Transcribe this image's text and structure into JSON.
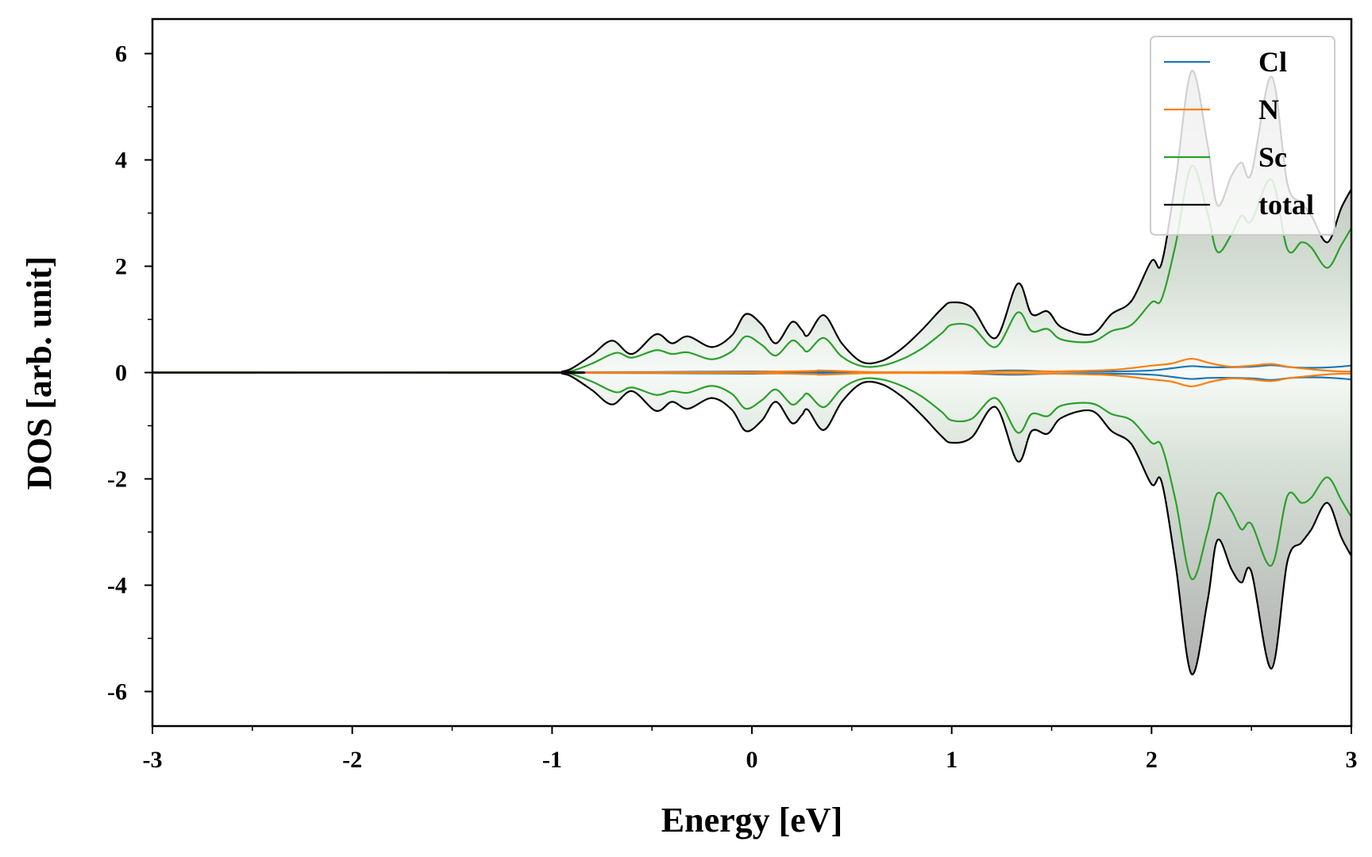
{
  "chart_data": {
    "type": "line",
    "title": "",
    "xlabel": "Energy [eV]",
    "ylabel": "DOS [arb. unit]",
    "xlim": [
      -3,
      3
    ],
    "ylim": [
      -6.65,
      6.65
    ],
    "xticks": [
      -3,
      -2,
      -1,
      0,
      1,
      2,
      3
    ],
    "xtick_labels": [
      "-3",
      "-2",
      "-1",
      "0",
      "1",
      "2",
      "3"
    ],
    "yticks": [
      -6,
      -4,
      -2,
      0,
      2,
      4,
      6
    ],
    "ytick_labels": [
      "-6",
      "-4",
      "-2",
      "0",
      "2",
      "4",
      "6"
    ],
    "grid": false,
    "legend_position": "top-right",
    "spin_mirrored": true,
    "fill_under": "total",
    "series": [
      {
        "name": "Cl",
        "color": "#1f77b4",
        "points": [
          [
            -3,
            0
          ],
          [
            -1,
            0
          ],
          [
            -0.9,
            0.005
          ],
          [
            -0.5,
            0.01
          ],
          [
            0,
            0.02
          ],
          [
            0.3,
            0.01
          ],
          [
            0.6,
            0.005
          ],
          [
            1.0,
            0.01
          ],
          [
            1.3,
            0.04
          ],
          [
            1.5,
            0.02
          ],
          [
            1.8,
            0.02
          ],
          [
            2.0,
            0.04
          ],
          [
            2.1,
            0.08
          ],
          [
            2.2,
            0.12
          ],
          [
            2.3,
            0.1
          ],
          [
            2.5,
            0.11
          ],
          [
            2.6,
            0.14
          ],
          [
            2.7,
            0.1
          ],
          [
            2.8,
            0.09
          ],
          [
            2.9,
            0.1
          ],
          [
            3.0,
            0.13
          ]
        ]
      },
      {
        "name": "N",
        "color": "#ff7f0e",
        "points": [
          [
            -3,
            0
          ],
          [
            -1,
            0
          ],
          [
            -0.9,
            0.003
          ],
          [
            -0.5,
            0.005
          ],
          [
            0,
            0.01
          ],
          [
            0.3,
            0.03
          ],
          [
            0.35,
            0.04
          ],
          [
            0.6,
            0.01
          ],
          [
            1.0,
            0.01
          ],
          [
            1.3,
            0.02
          ],
          [
            1.5,
            0.02
          ],
          [
            1.8,
            0.05
          ],
          [
            2.0,
            0.13
          ],
          [
            2.1,
            0.17
          ],
          [
            2.2,
            0.26
          ],
          [
            2.3,
            0.17
          ],
          [
            2.4,
            0.11
          ],
          [
            2.5,
            0.13
          ],
          [
            2.6,
            0.16
          ],
          [
            2.7,
            0.1
          ],
          [
            2.9,
            0.03
          ],
          [
            3.0,
            0.02
          ]
        ]
      },
      {
        "name": "Sc",
        "color": "#2ca02c",
        "points": [
          [
            -3,
            0
          ],
          [
            -1,
            0
          ],
          [
            -0.95,
            0.01
          ],
          [
            -0.9,
            0.03
          ],
          [
            -0.8,
            0.17
          ],
          [
            -0.68,
            0.37
          ],
          [
            -0.6,
            0.28
          ],
          [
            -0.48,
            0.42
          ],
          [
            -0.4,
            0.35
          ],
          [
            -0.32,
            0.38
          ],
          [
            -0.2,
            0.25
          ],
          [
            -0.1,
            0.4
          ],
          [
            -0.03,
            0.68
          ],
          [
            0.05,
            0.52
          ],
          [
            0.12,
            0.32
          ],
          [
            0.2,
            0.6
          ],
          [
            0.25,
            0.48
          ],
          [
            0.28,
            0.4
          ],
          [
            0.36,
            0.65
          ],
          [
            0.45,
            0.3
          ],
          [
            0.55,
            0.12
          ],
          [
            0.65,
            0.13
          ],
          [
            0.75,
            0.25
          ],
          [
            0.85,
            0.45
          ],
          [
            0.95,
            0.74
          ],
          [
            1.0,
            0.9
          ],
          [
            1.1,
            0.87
          ],
          [
            1.22,
            0.48
          ],
          [
            1.33,
            1.13
          ],
          [
            1.4,
            0.78
          ],
          [
            1.48,
            0.82
          ],
          [
            1.55,
            0.62
          ],
          [
            1.7,
            0.58
          ],
          [
            1.8,
            0.78
          ],
          [
            1.9,
            0.9
          ],
          [
            2.0,
            1.32
          ],
          [
            2.05,
            1.38
          ],
          [
            2.12,
            2.4
          ],
          [
            2.2,
            3.88
          ],
          [
            2.28,
            3.0
          ],
          [
            2.33,
            2.27
          ],
          [
            2.4,
            2.6
          ],
          [
            2.45,
            2.95
          ],
          [
            2.5,
            2.85
          ],
          [
            2.6,
            3.63
          ],
          [
            2.68,
            2.32
          ],
          [
            2.75,
            2.45
          ],
          [
            2.8,
            2.35
          ],
          [
            2.88,
            1.97
          ],
          [
            2.95,
            2.4
          ],
          [
            3.0,
            2.72
          ]
        ]
      },
      {
        "name": "total",
        "color": "#000000",
        "points": [
          [
            -3,
            0
          ],
          [
            -1,
            0
          ],
          [
            -0.95,
            0.02
          ],
          [
            -0.9,
            0.08
          ],
          [
            -0.8,
            0.33
          ],
          [
            -0.7,
            0.6
          ],
          [
            -0.6,
            0.35
          ],
          [
            -0.48,
            0.72
          ],
          [
            -0.4,
            0.55
          ],
          [
            -0.32,
            0.68
          ],
          [
            -0.2,
            0.48
          ],
          [
            -0.1,
            0.7
          ],
          [
            -0.03,
            1.1
          ],
          [
            0.05,
            0.9
          ],
          [
            0.12,
            0.55
          ],
          [
            0.2,
            0.95
          ],
          [
            0.25,
            0.8
          ],
          [
            0.28,
            0.7
          ],
          [
            0.36,
            1.08
          ],
          [
            0.45,
            0.55
          ],
          [
            0.55,
            0.2
          ],
          [
            0.65,
            0.22
          ],
          [
            0.75,
            0.45
          ],
          [
            0.85,
            0.8
          ],
          [
            0.95,
            1.2
          ],
          [
            1.0,
            1.32
          ],
          [
            1.1,
            1.22
          ],
          [
            1.22,
            0.65
          ],
          [
            1.33,
            1.67
          ],
          [
            1.4,
            1.1
          ],
          [
            1.48,
            1.15
          ],
          [
            1.55,
            0.85
          ],
          [
            1.7,
            0.72
          ],
          [
            1.8,
            1.1
          ],
          [
            1.9,
            1.35
          ],
          [
            2.0,
            2.1
          ],
          [
            2.05,
            2.05
          ],
          [
            2.12,
            3.6
          ],
          [
            2.2,
            5.67
          ],
          [
            2.28,
            4.3
          ],
          [
            2.33,
            3.15
          ],
          [
            2.4,
            3.7
          ],
          [
            2.45,
            3.95
          ],
          [
            2.5,
            3.75
          ],
          [
            2.6,
            5.57
          ],
          [
            2.68,
            3.55
          ],
          [
            2.75,
            3.2
          ],
          [
            2.8,
            2.95
          ],
          [
            2.88,
            2.45
          ],
          [
            2.95,
            3.1
          ],
          [
            3.0,
            3.45
          ]
        ]
      }
    ]
  }
}
